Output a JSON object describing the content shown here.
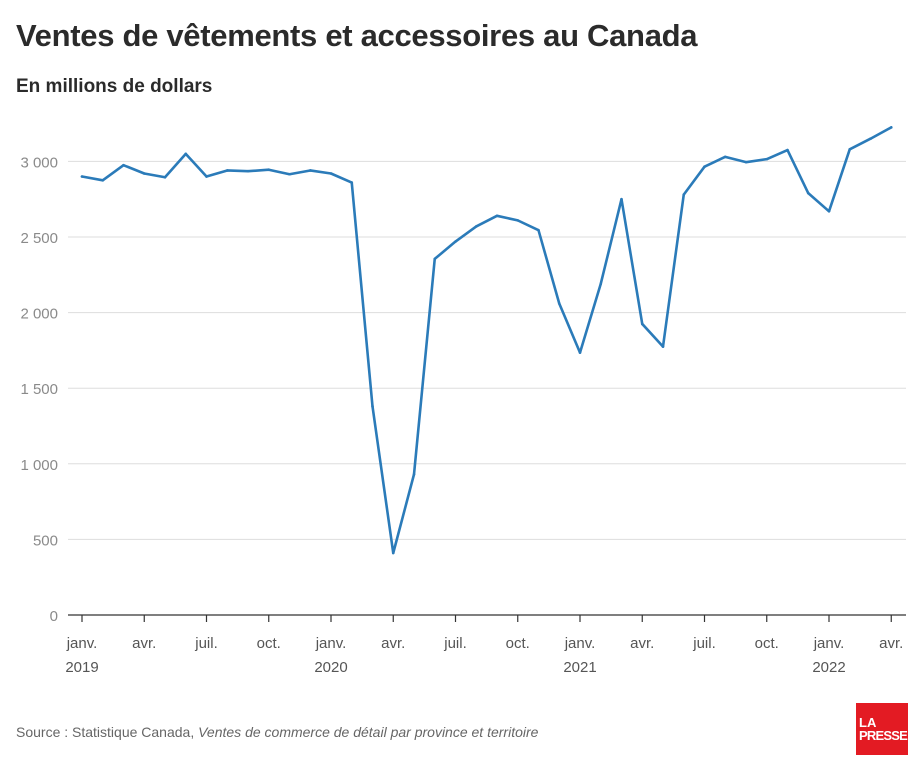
{
  "title": "Ventes de vêtements et accessoires au Canada",
  "subtitle": "En millions de dollars",
  "source": {
    "prefix": "Source : Statistique Canada, ",
    "reference": "Ventes de commerce de détail par province et territoire"
  },
  "logo": {
    "line1": "LA",
    "line2": "PRESSE",
    "color": "#e31b23"
  },
  "chart_data": {
    "type": "line",
    "title": "Ventes de vêtements et accessoires au Canada",
    "ylabel": "En millions de dollars",
    "xlabel": "",
    "ylim": [
      0,
      3300
    ],
    "y_ticks": [
      0,
      500,
      1000,
      1500,
      2000,
      2500,
      3000
    ],
    "y_tick_labels": [
      "0",
      "500",
      "1 000",
      "1 500",
      "2 000",
      "2 500",
      "3 000"
    ],
    "x_ticks": [
      {
        "index": 0,
        "label": "janv.",
        "year": "2019"
      },
      {
        "index": 3,
        "label": "avr.",
        "year": ""
      },
      {
        "index": 6,
        "label": "juil.",
        "year": ""
      },
      {
        "index": 9,
        "label": "oct.",
        "year": ""
      },
      {
        "index": 12,
        "label": "janv.",
        "year": "2020"
      },
      {
        "index": 15,
        "label": "avr.",
        "year": ""
      },
      {
        "index": 18,
        "label": "juil.",
        "year": ""
      },
      {
        "index": 21,
        "label": "oct.",
        "year": ""
      },
      {
        "index": 24,
        "label": "janv.",
        "year": "2021"
      },
      {
        "index": 27,
        "label": "avr.",
        "year": ""
      },
      {
        "index": 30,
        "label": "juil.",
        "year": ""
      },
      {
        "index": 33,
        "label": "oct.",
        "year": ""
      },
      {
        "index": 36,
        "label": "janv.",
        "year": "2022"
      },
      {
        "index": 39,
        "label": "avr.",
        "year": ""
      }
    ],
    "x": [
      "2019-01",
      "2019-02",
      "2019-03",
      "2019-04",
      "2019-05",
      "2019-06",
      "2019-07",
      "2019-08",
      "2019-09",
      "2019-10",
      "2019-11",
      "2019-12",
      "2020-01",
      "2020-02",
      "2020-03",
      "2020-04",
      "2020-05",
      "2020-06",
      "2020-07",
      "2020-08",
      "2020-09",
      "2020-10",
      "2020-11",
      "2020-12",
      "2021-01",
      "2021-02",
      "2021-03",
      "2021-04",
      "2021-05",
      "2021-06",
      "2021-07",
      "2021-08",
      "2021-09",
      "2021-10",
      "2021-11",
      "2021-12",
      "2022-01",
      "2022-02",
      "2022-03",
      "2022-04"
    ],
    "series": [
      {
        "color": "#2b7bb9",
        "values": [
          2900,
          2875,
          2975,
          2920,
          2895,
          3050,
          2900,
          2940,
          2935,
          2945,
          2915,
          2940,
          2920,
          2860,
          1380,
          410,
          930,
          2355,
          2470,
          2570,
          2640,
          2610,
          2545,
          2060,
          1735,
          2190,
          2750,
          1925,
          1775,
          2780,
          2965,
          3030,
          2995,
          3015,
          3075,
          2790,
          2670,
          3080,
          3150,
          3225
        ]
      }
    ],
    "grid": true,
    "legend": "none"
  }
}
